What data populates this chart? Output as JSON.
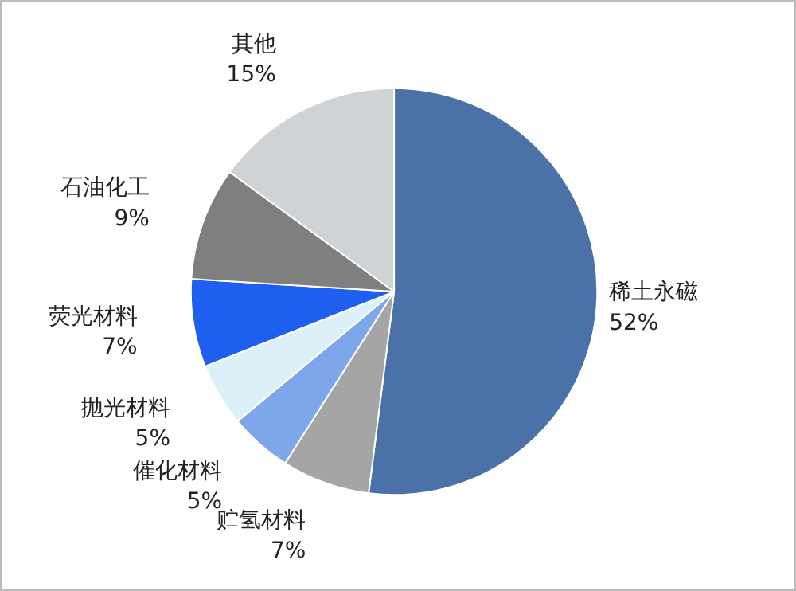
{
  "chart_data": {
    "type": "pie",
    "categories": [
      "稀土永磁",
      "贮氢材料",
      "催化材料",
      "抛光材料",
      "荧光材料",
      "石油化工",
      "其他"
    ],
    "values": [
      52,
      7,
      5,
      5,
      7,
      9,
      15
    ],
    "value_labels": [
      "52%",
      "7%",
      "5%",
      "5%",
      "7%",
      "9%",
      "15%"
    ],
    "colors": [
      "#4a72a8",
      "#a5a5a5",
      "#7ea6ea",
      "#dcf1f7",
      "#1f5ff0",
      "#7f7f7f",
      "#cfd3d6"
    ]
  }
}
